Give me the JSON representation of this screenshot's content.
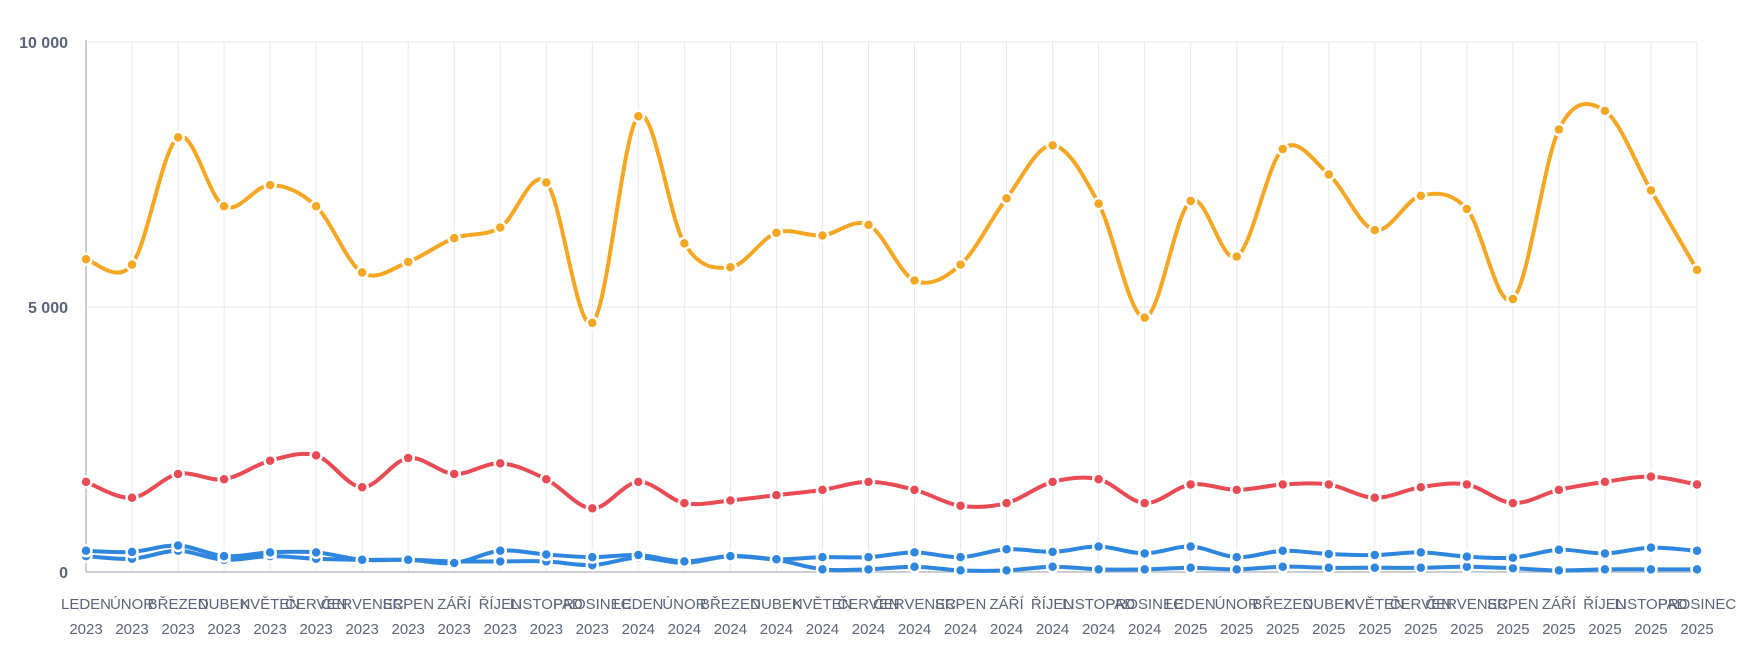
{
  "chart_data": {
    "type": "line",
    "categories": [
      [
        "LEDEN",
        "2023"
      ],
      [
        "ÚNOR",
        "2023"
      ],
      [
        "BŘEZEN",
        "2023"
      ],
      [
        "DUBEN",
        "2023"
      ],
      [
        "KVĚTEN",
        "2023"
      ],
      [
        "ČERVEN",
        "2023"
      ],
      [
        "ČERVENEC",
        "2023"
      ],
      [
        "SRPEN",
        "2023"
      ],
      [
        "ZÁŘÍ",
        "2023"
      ],
      [
        "ŘÍJEN",
        "2023"
      ],
      [
        "LISTOPAD",
        "2023"
      ],
      [
        "PROSINEC",
        "2023"
      ],
      [
        "LEDEN",
        "2024"
      ],
      [
        "ÚNOR",
        "2024"
      ],
      [
        "BŘEZEN",
        "2024"
      ],
      [
        "DUBEN",
        "2024"
      ],
      [
        "KVĚTEN",
        "2024"
      ],
      [
        "ČERVEN",
        "2024"
      ],
      [
        "ČERVENEC",
        "2024"
      ],
      [
        "SRPEN",
        "2024"
      ],
      [
        "ZÁŘÍ",
        "2024"
      ],
      [
        "ŘÍJEN",
        "2024"
      ],
      [
        "LISTOPAD",
        "2024"
      ],
      [
        "PROSINEC",
        "2024"
      ],
      [
        "LEDEN",
        "2025"
      ],
      [
        "ÚNOR",
        "2025"
      ],
      [
        "BŘEZEN",
        "2025"
      ],
      [
        "DUBEN",
        "2025"
      ],
      [
        "KVĚTEN",
        "2025"
      ],
      [
        "ČERVEN",
        "2025"
      ],
      [
        "ČERVENEC",
        "2025"
      ],
      [
        "SRPEN",
        "2025"
      ],
      [
        "ZÁŘÍ",
        "2025"
      ],
      [
        "ŘÍJEN",
        "2025"
      ],
      [
        "LISTOPAD",
        "2025"
      ],
      [
        "PROSINEC",
        "2025"
      ]
    ],
    "ylim": [
      0,
      10000
    ],
    "yticks": [
      {
        "value": 0,
        "label": "0"
      },
      {
        "value": 5000,
        "label": "5 000"
      },
      {
        "value": 10000,
        "label": "10 000"
      }
    ],
    "grid": true,
    "series": [
      {
        "color": "#f5a623",
        "values": [
          5900,
          5800,
          8200,
          6900,
          7300,
          6900,
          5650,
          5850,
          6300,
          6500,
          7350,
          4700,
          8600,
          6200,
          5750,
          6400,
          6350,
          6550,
          5500,
          5800,
          7050,
          8050,
          6950,
          4800,
          7000,
          5950,
          7980,
          7500,
          6450,
          7100,
          6850,
          5150,
          8350,
          8700,
          7200,
          5700
        ]
      },
      {
        "color": "#e94b54",
        "values": [
          1700,
          1400,
          1850,
          1750,
          2100,
          2200,
          1600,
          2150,
          1850,
          2050,
          1750,
          1200,
          1700,
          1300,
          1350,
          1450,
          1550,
          1700,
          1550,
          1250,
          1300,
          1700,
          1750,
          1300,
          1650,
          1550,
          1650,
          1650,
          1400,
          1600,
          1650,
          1300,
          1550,
          1700,
          1800,
          1650
        ]
      },
      {
        "color": "#2f86de",
        "values": [
          400,
          380,
          500,
          300,
          370,
          370,
          230,
          230,
          170,
          400,
          330,
          280,
          320,
          200,
          300,
          240,
          280,
          280,
          370,
          280,
          430,
          380,
          480,
          350,
          480,
          280,
          400,
          340,
          320,
          370,
          290,
          270,
          420,
          350,
          460,
          400
        ]
      },
      {
        "color": "#2f86de",
        "values": [
          300,
          250,
          400,
          230,
          300,
          250,
          230,
          230,
          200,
          200,
          200,
          130,
          270,
          170,
          300,
          230,
          50,
          50,
          100,
          30,
          30,
          100,
          50,
          50,
          80,
          50,
          100,
          80,
          80,
          80,
          100,
          70,
          30,
          50,
          50,
          50
        ]
      }
    ]
  }
}
